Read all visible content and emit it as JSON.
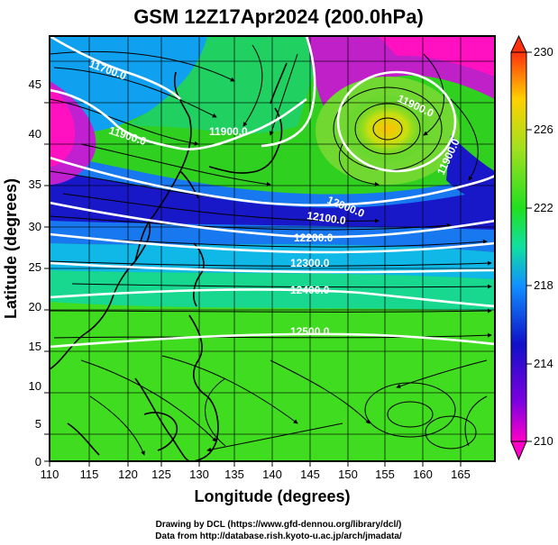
{
  "title": "GSM 12Z17Apr2024 (200.0hPa)",
  "xlabel": "Longitude (degrees)",
  "ylabel": "Latitude  (degrees)",
  "x_ticks": [
    "110",
    "115",
    "120",
    "125",
    "130",
    "135",
    "140",
    "145",
    "150",
    "155",
    "160",
    "165"
  ],
  "y_ticks": [
    "0",
    "5",
    "10",
    "15",
    "20",
    "25",
    "30",
    "35",
    "40",
    "45"
  ],
  "colorbar": {
    "ticks": [
      "230",
      "226",
      "222",
      "218",
      "214",
      "210"
    ],
    "range": [
      210,
      230
    ],
    "colors": [
      "#ff00c8",
      "#1818d0",
      "#10a8ff",
      "#10e890",
      "#30e020",
      "#a0e020",
      "#ffd000",
      "#ff3010"
    ]
  },
  "contour_labels": [
    "11700.0",
    "11900.0",
    "11900.0",
    "11900.0",
    "11900.0",
    "12000.0",
    "12100.0",
    "12200.0",
    "12300.0",
    "12400.0",
    "12500.0"
  ],
  "credits": {
    "line1": "Drawing by DCL (https://www.gfd-dennou.org/library/dcl/)",
    "line2": "Data from http://database.rish.kyoto-u.ac.jp/arch/jmadata/"
  }
}
